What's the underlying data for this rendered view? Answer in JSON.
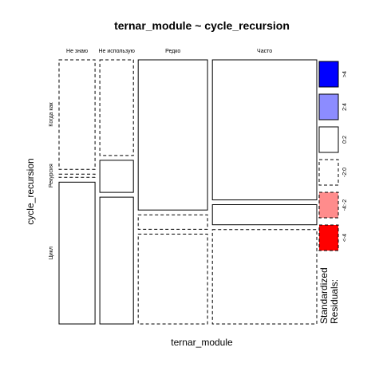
{
  "chart_data": {
    "type": "mosaic",
    "title": "ternar_module ~ cycle_recursion",
    "xlabel": "ternar_module",
    "ylabel": "cycle_recursion",
    "columns": [
      {
        "label": "Не знаю",
        "width_share": 0.148
      },
      {
        "label": "Не использую",
        "width_share": 0.138
      },
      {
        "label": "Редко",
        "width_share": 0.285
      },
      {
        "label": "Часто",
        "width_share": 0.429
      }
    ],
    "rows": [
      "Когда как",
      "Рекурсия",
      "Цикл"
    ],
    "y_tick_labels": [
      {
        "label": "Когда как",
        "row": 0
      },
      {
        "label": "Рекурсия",
        "row": 1
      },
      {
        "label": "Цикл",
        "row": 2
      }
    ],
    "cells": [
      [
        {
          "share": 0.43,
          "residual_class": "-2:0"
        },
        {
          "share": 0.013,
          "residual_class": "-2:0"
        },
        {
          "share": 0.557,
          "residual_class": "0:2"
        }
      ],
      [
        {
          "share": 0.376,
          "residual_class": "-2:0"
        },
        {
          "share": 0.126,
          "residual_class": "0:2"
        },
        {
          "share": 0.498,
          "residual_class": "0:2"
        }
      ],
      [
        {
          "share": 0.59,
          "residual_class": "0:2"
        },
        {
          "share": 0.057,
          "residual_class": "-2:0"
        },
        {
          "share": 0.353,
          "residual_class": "-2:0"
        }
      ],
      [
        {
          "share": 0.55,
          "residual_class": "0:2"
        },
        {
          "share": 0.079,
          "residual_class": "0:2"
        },
        {
          "share": 0.371,
          "residual_class": "-2:0"
        }
      ]
    ],
    "legend": {
      "title_lines": [
        "Standardized",
        "Residuals:"
      ],
      "placement": "right",
      "entries": [
        {
          "label": ">4",
          "fill": "#0000ff",
          "border": "solid"
        },
        {
          "label": "2:4",
          "fill": "#8c8cff",
          "border": "solid"
        },
        {
          "label": "0:2",
          "fill": "#ffffff",
          "border": "solid"
        },
        {
          "label": "-2:0",
          "fill": "#ffffff",
          "border": "dashed"
        },
        {
          "label": "-4:-2",
          "fill": "#ff8c8c",
          "border": "dashed"
        },
        {
          "label": "<-4",
          "fill": "#ff0000",
          "border": "dashed"
        }
      ]
    }
  }
}
